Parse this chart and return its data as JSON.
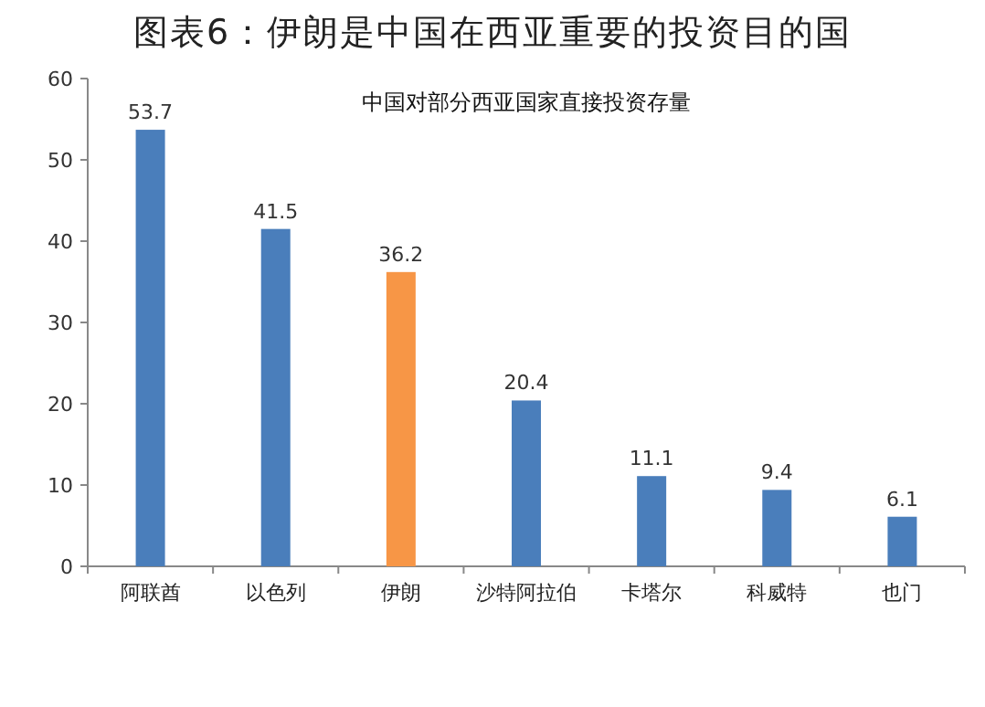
{
  "chart_data": {
    "type": "bar",
    "title": "图表6：伊朗是中国在西亚重要的投资目的国",
    "subtitle": "中国对部分西亚国家直接投资存量",
    "categories": [
      "阿联酋",
      "以色列",
      "伊朗",
      "沙特阿拉伯",
      "卡塔尔",
      "科威特",
      "也门"
    ],
    "values": [
      53.7,
      41.5,
      36.2,
      20.4,
      11.1,
      9.4,
      6.1
    ],
    "colors": [
      "#4a7ebb",
      "#4a7ebb",
      "#f79646",
      "#4a7ebb",
      "#4a7ebb",
      "#4a7ebb",
      "#4a7ebb"
    ],
    "ylim": [
      0,
      60
    ],
    "yticks": [
      0,
      10,
      20,
      30,
      40,
      50,
      60
    ],
    "data_labels": true
  }
}
